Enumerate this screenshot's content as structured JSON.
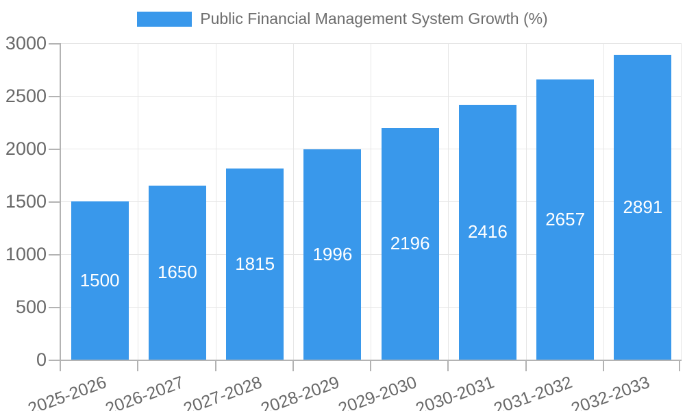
{
  "legend": {
    "label": "Public Financial Management System Growth (%)"
  },
  "colors": {
    "bar": "#3998EB",
    "grid": "#e6e6e6",
    "axis": "#b3b3b3",
    "tick_text": "#696969",
    "value_text": "#ffffff"
  },
  "chart_data": {
    "type": "bar",
    "title": "Public Financial Management System Growth (%)",
    "categories": [
      "2025-2026",
      "2026-2027",
      "2027-2028",
      "2028-2029",
      "2029-2030",
      "2030-2031",
      "2031-2032",
      "2032-2033"
    ],
    "values": [
      1500,
      1650,
      1815,
      1996,
      2196,
      2416,
      2657,
      2891
    ],
    "xlabel": "",
    "ylabel": "",
    "ylim": [
      0,
      3000
    ],
    "yticks": [
      0,
      500,
      1000,
      1500,
      2000,
      2500,
      3000
    ],
    "grid": true,
    "legend_position": "top-center",
    "value_labels": "inside-center"
  }
}
